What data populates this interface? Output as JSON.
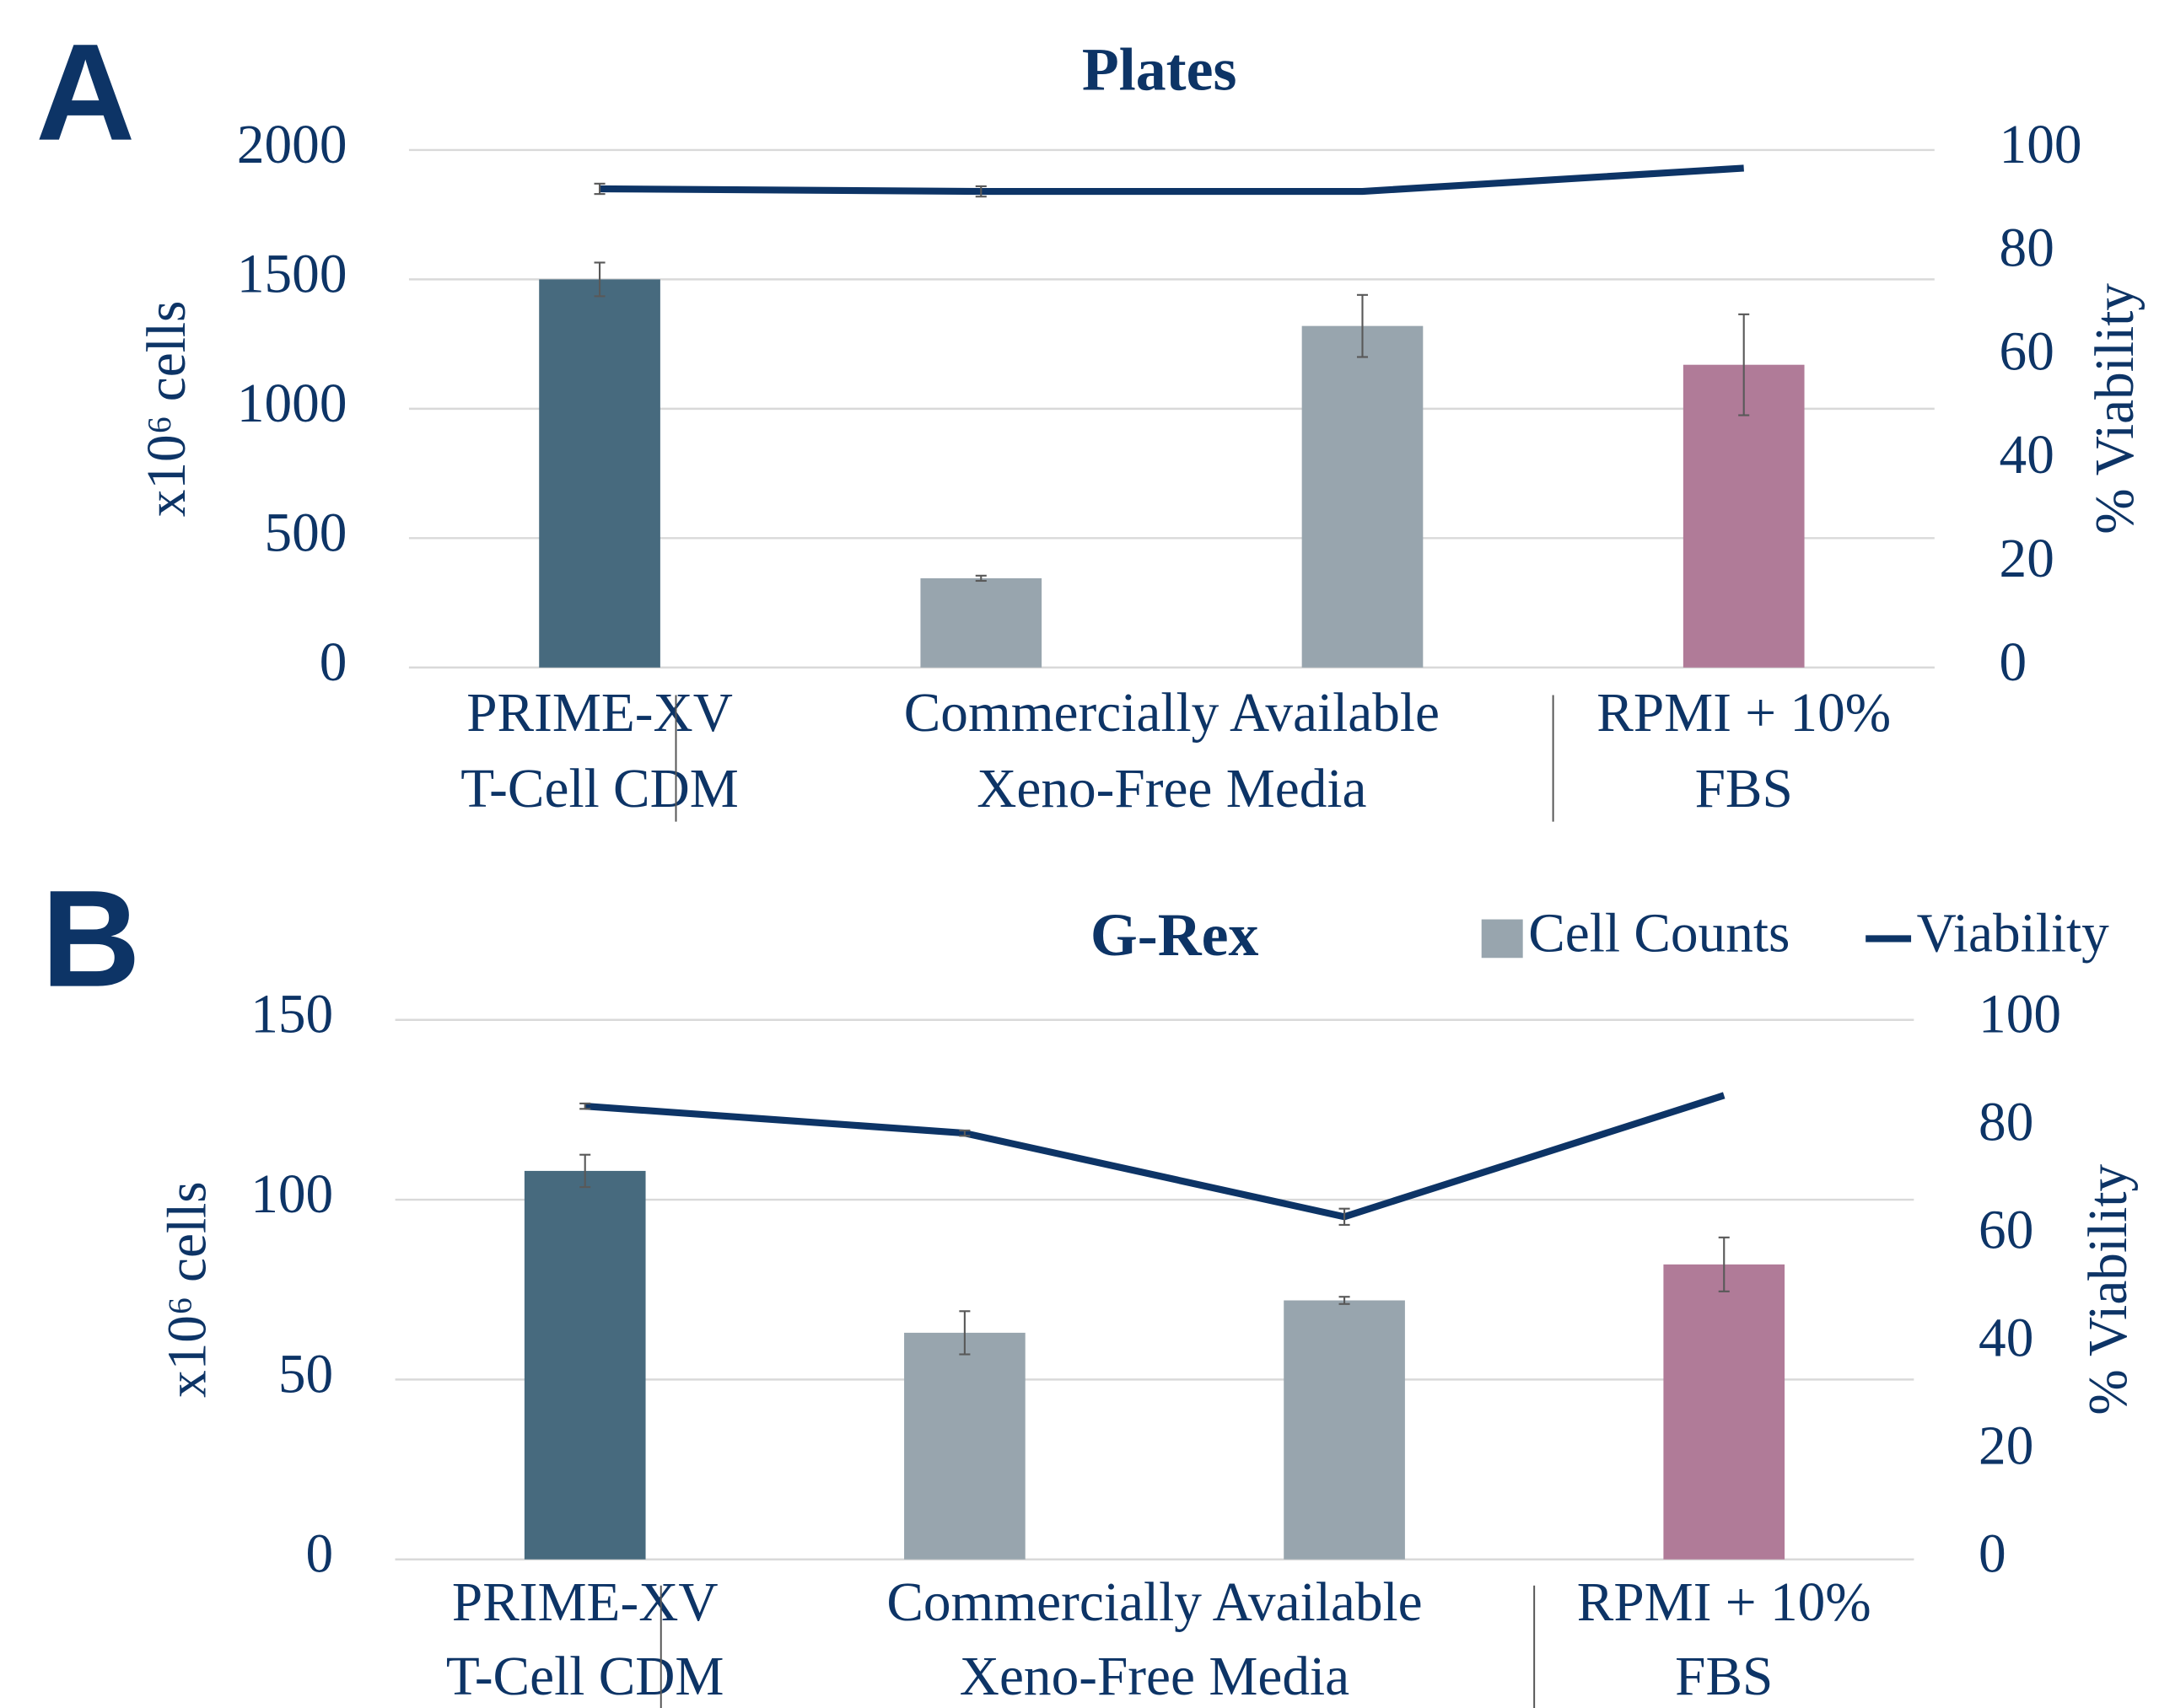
{
  "chart_data": [
    {
      "type": "bar_line",
      "panel_label": "A",
      "title": "Plates",
      "y_label": "x10⁶ cells",
      "y2_label": "% Viability",
      "groups": [
        {
          "label": [
            "PRIME-XV",
            "T-Cell CDM"
          ],
          "count": 1
        },
        {
          "label": [
            "Commercially Available",
            "Xeno-Free Media"
          ],
          "count": 2
        },
        {
          "label": [
            "RPMI + 10%",
            "FBS"
          ],
          "count": 1
        }
      ],
      "ylim": [
        0,
        2000
      ],
      "yticks": [
        0,
        500,
        1000,
        1500,
        2000
      ],
      "y2lim": [
        0,
        100
      ],
      "y2ticks": [
        0,
        20,
        40,
        60,
        80,
        100
      ],
      "grid": true,
      "legend": false,
      "series": [
        {
          "type": "bar",
          "colors": [
            "#476a7e",
            "#98a5ae",
            "#98a5ae",
            "#b07b98"
          ],
          "values": [
            1500,
            345,
            1320,
            1170
          ],
          "errors": [
            65,
            10,
            120,
            195
          ]
        },
        {
          "type": "line",
          "axis": "y2",
          "color": "#0d3466",
          "values": [
            92.5,
            92,
            92,
            96.5
          ],
          "errors": [
            1,
            1,
            0,
            0
          ]
        }
      ]
    },
    {
      "type": "bar_line",
      "panel_label": "B",
      "title": "G-Rex",
      "y_label": "x10⁶ cells",
      "y2_label": "% Viability",
      "groups": [
        {
          "label": [
            "PRIME-XV",
            "T-Cell CDM"
          ],
          "count": 1
        },
        {
          "label": [
            "Commercially Available",
            "Xeno-Free Media"
          ],
          "count": 2
        },
        {
          "label": [
            "RPMI + 10%",
            "FBS"
          ],
          "count": 1
        }
      ],
      "ylim": [
        0,
        150
      ],
      "yticks": [
        0,
        50,
        100,
        150
      ],
      "y2lim": [
        0,
        100
      ],
      "y2ticks": [
        0,
        20,
        40,
        60,
        80,
        100
      ],
      "grid": true,
      "legend": true,
      "series": [
        {
          "type": "bar",
          "name": "Cell Counts",
          "color": "#98a5ae",
          "colors": [
            "#476a7e",
            "#98a5ae",
            "#98a5ae",
            "#b07b98"
          ],
          "values": [
            108,
            63,
            72,
            82
          ],
          "errors": [
            4.5,
            6,
            1,
            7.5
          ]
        },
        {
          "type": "line",
          "name": "Viability",
          "axis": "y2",
          "color": "#0d3466",
          "values": [
            84,
            79,
            63.5,
            86
          ],
          "errors": [
            0.5,
            0.5,
            1.5,
            0
          ]
        }
      ]
    }
  ]
}
